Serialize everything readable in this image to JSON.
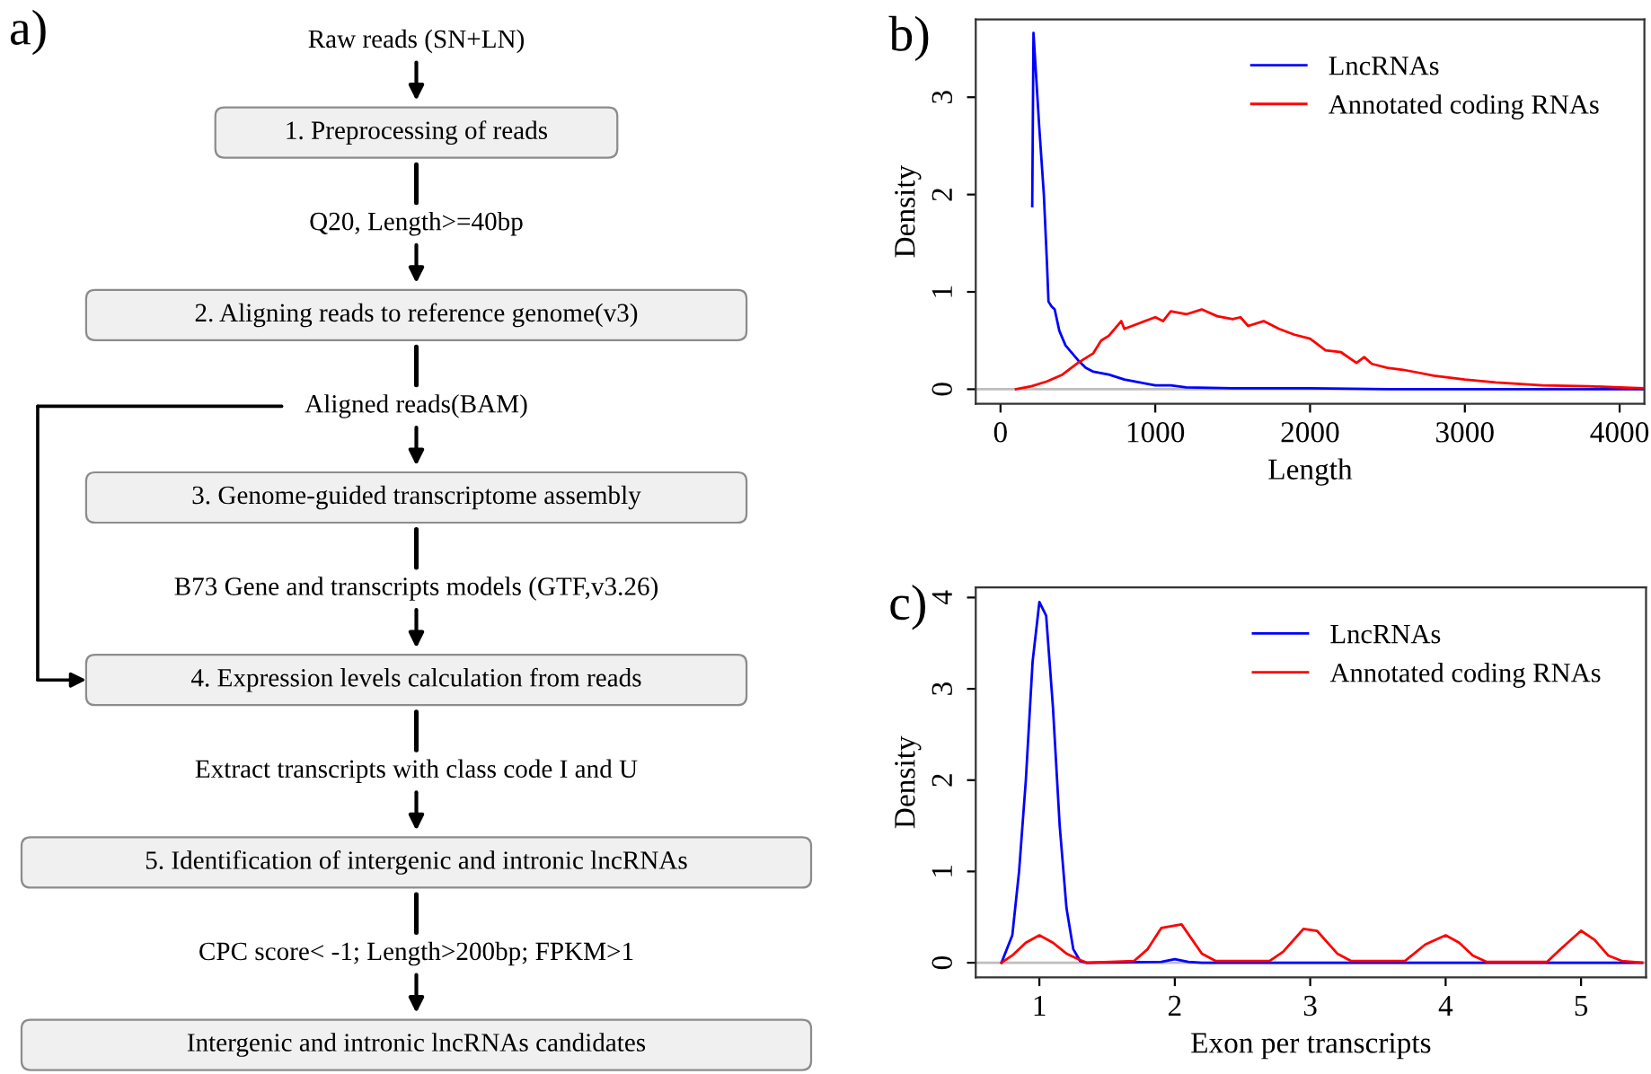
{
  "chart_data": [
    {
      "type": "other",
      "title": "a)",
      "annotations": [
        "Raw reads (SN+LN)",
        "1. Preprocessing of reads",
        "Q20, Length>=40bp",
        "2. Aligning reads to reference genome(v3)",
        "Aligned reads(BAM)",
        "3. Genome-guided transcriptome assembly",
        "B73 Gene and transcripts models (GTF,v3.26)",
        "4. Expression levels calculation from reads",
        "Extract transcripts with class code I and U",
        "5. Identification of intergenic and intronic lncRNAs",
        "CPC score< -1; Length>200bp; FPKM>1",
        "Intergenic and intronic lncRNAs candidates"
      ]
    },
    {
      "type": "line",
      "title": "b)",
      "xlabel": "Length",
      "ylabel": "Density",
      "xlim": [
        -160,
        4160
      ],
      "ylim": [
        -0.15,
        3.8
      ],
      "xticks": [
        0,
        1000,
        2000,
        3000,
        4000
      ],
      "yticks": [
        0,
        1,
        2,
        3
      ],
      "grid": false,
      "legend": "top right",
      "ref_lines": [
        {
          "axis": "y",
          "value": 0,
          "color": "#bebebe"
        }
      ],
      "series": [
        {
          "name": "LncRNAs",
          "color": "#0000ff",
          "x": [
            205,
            213,
            250,
            280,
            300,
            310,
            330,
            350,
            380,
            420,
            500,
            550,
            600,
            700,
            800,
            900,
            1000,
            1100,
            1200,
            1500,
            2000,
            2500,
            3000,
            4150
          ],
          "values": [
            1.88,
            3.66,
            2.7,
            2.0,
            1.3,
            0.9,
            0.85,
            0.82,
            0.6,
            0.45,
            0.3,
            0.22,
            0.18,
            0.15,
            0.1,
            0.07,
            0.04,
            0.04,
            0.02,
            0.01,
            0.01,
            0,
            0,
            0
          ]
        },
        {
          "name": "Annotated coding RNAs",
          "color": "#ff0000",
          "x": [
            100,
            200,
            300,
            400,
            500,
            600,
            650,
            700,
            780,
            800,
            900,
            1000,
            1050,
            1100,
            1200,
            1300,
            1400,
            1500,
            1550,
            1600,
            1700,
            1800,
            1900,
            2000,
            2100,
            2200,
            2300,
            2350,
            2400,
            2500,
            2600,
            2700,
            2800,
            3000,
            3200,
            3500,
            3800,
            4000,
            4150
          ],
          "values": [
            0,
            0.03,
            0.08,
            0.15,
            0.27,
            0.37,
            0.5,
            0.55,
            0.7,
            0.62,
            0.68,
            0.74,
            0.7,
            0.8,
            0.77,
            0.82,
            0.75,
            0.72,
            0.74,
            0.65,
            0.7,
            0.62,
            0.56,
            0.52,
            0.4,
            0.38,
            0.27,
            0.33,
            0.26,
            0.22,
            0.2,
            0.17,
            0.14,
            0.1,
            0.07,
            0.04,
            0.03,
            0.02,
            0.01
          ]
        }
      ]
    },
    {
      "type": "line",
      "title": "c)",
      "xlabel": "Exon per transcripts",
      "ylabel": "Density",
      "xlim": [
        0.53,
        5.48
      ],
      "ylim": [
        -0.16,
        4.11
      ],
      "xticks": [
        1,
        2,
        3,
        4,
        5
      ],
      "yticks": [
        0,
        1,
        2,
        3,
        4
      ],
      "grid": false,
      "legend": "top right",
      "ref_lines": [
        {
          "axis": "y",
          "value": 0,
          "color": "#bebebe"
        }
      ],
      "series": [
        {
          "name": "LncRNAs",
          "color": "#0000ff",
          "x": [
            0.72,
            0.8,
            0.85,
            0.9,
            0.95,
            1.0,
            1.05,
            1.1,
            1.15,
            1.2,
            1.25,
            1.3,
            1.35,
            1.9,
            2.0,
            2.1,
            2.2,
            5.45
          ],
          "values": [
            0,
            0.3,
            1.0,
            2.0,
            3.3,
            3.95,
            3.8,
            2.8,
            1.5,
            0.6,
            0.15,
            0.02,
            0,
            0.01,
            0.04,
            0.01,
            0,
            0
          ]
        },
        {
          "name": "Annotated coding RNAs",
          "color": "#ff0000",
          "x": [
            0.72,
            0.8,
            0.9,
            1.0,
            1.1,
            1.2,
            1.3,
            1.35,
            1.7,
            1.8,
            1.9,
            2.05,
            2.2,
            2.3,
            2.7,
            2.8,
            2.95,
            3.05,
            3.2,
            3.3,
            3.7,
            3.85,
            4.0,
            4.1,
            4.2,
            4.3,
            4.75,
            4.85,
            5.0,
            5.1,
            5.2,
            5.3,
            5.45
          ],
          "values": [
            0,
            0.08,
            0.22,
            0.3,
            0.22,
            0.1,
            0.03,
            0,
            0.02,
            0.15,
            0.38,
            0.42,
            0.1,
            0.02,
            0.02,
            0.12,
            0.37,
            0.35,
            0.1,
            0.02,
            0.02,
            0.2,
            0.3,
            0.22,
            0.08,
            0.01,
            0.01,
            0.15,
            0.35,
            0.25,
            0.08,
            0.02,
            0
          ]
        }
      ]
    }
  ]
}
